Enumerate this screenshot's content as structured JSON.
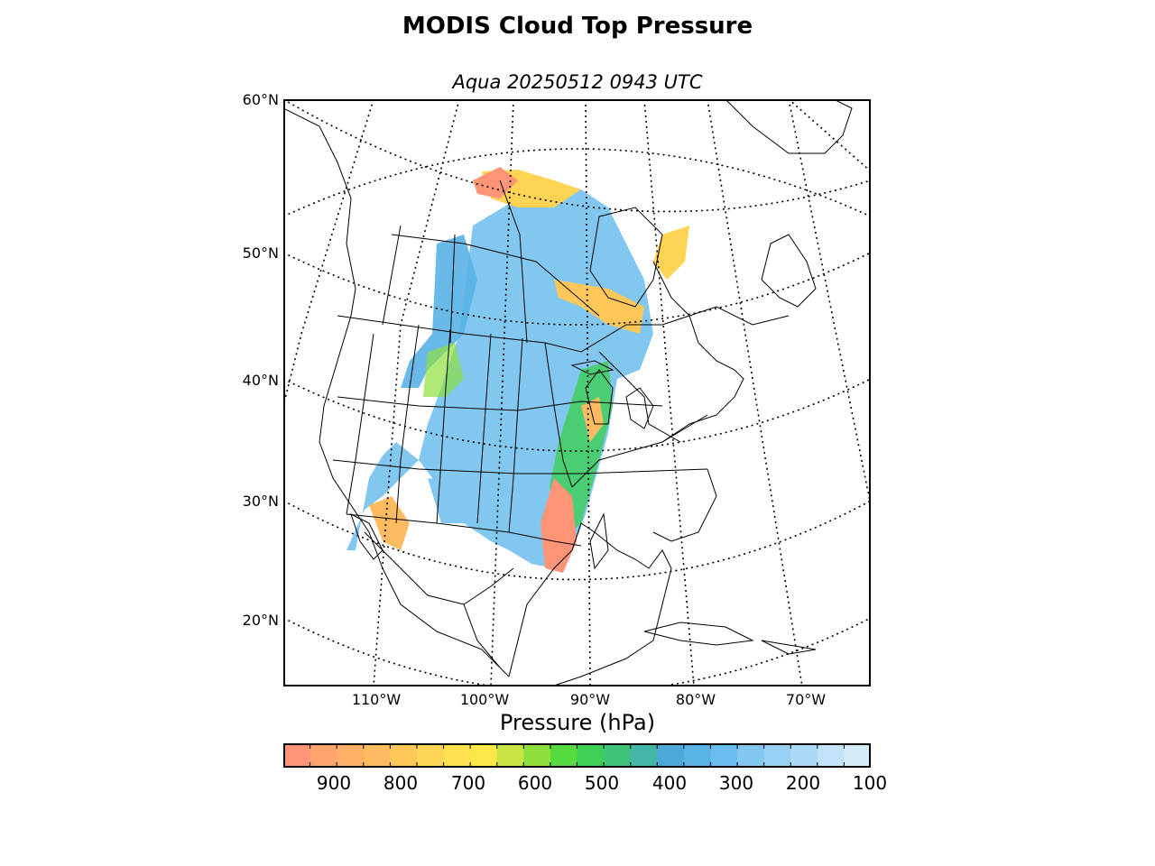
{
  "title": "MODIS Cloud Top Pressure",
  "subtitle": "Aqua 20250512 0943 UTC",
  "map": {
    "projection": "lambert-conformal",
    "extent_description": "North America",
    "graticule_style": "dotted",
    "lat_labels": [
      "60°N",
      "50°N",
      "40°N",
      "30°N",
      "20°N"
    ],
    "lon_labels": [
      "110°W",
      "100°W",
      "90°W",
      "80°W",
      "70°W"
    ],
    "coastline_color": "#000000",
    "background_color": "#ffffff",
    "cloud_field": "swath over central North America, 100–900 hPa"
  },
  "colorbar": {
    "label": "Pressure (hPa)",
    "range": [
      975,
      100
    ],
    "ticks": [
      "900",
      "800",
      "700",
      "600",
      "500",
      "400",
      "300",
      "200",
      "100"
    ],
    "colors": [
      "#ff9477",
      "#ffa36e",
      "#ffaf66",
      "#ffbb5f",
      "#ffc75a",
      "#ffd454",
      "#ffe04e",
      "#fde84a",
      "#c8e544",
      "#8ee03e",
      "#55da3f",
      "#3dd054",
      "#3ec47b",
      "#44b5a7",
      "#4aa9d6",
      "#59b3e5",
      "#6bbded",
      "#82c7f0",
      "#97d0f2",
      "#acd9f5",
      "#c2e3f8",
      "#d5ecfa"
    ]
  }
}
